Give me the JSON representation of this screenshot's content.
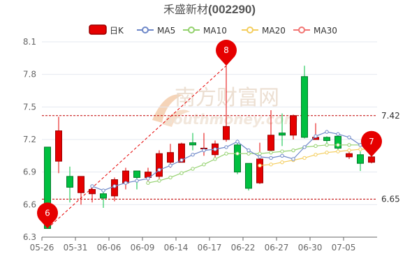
{
  "chart_data": {
    "type": "candlestick",
    "title": {
      "name": "禾盛新材",
      "code": "(002290)"
    },
    "legend": [
      {
        "key": "dayk",
        "label": "日K",
        "color": "#e60000"
      },
      {
        "key": "ma5",
        "label": "MA5",
        "color": "#6d87c8"
      },
      {
        "key": "ma10",
        "label": "MA10",
        "color": "#93d16d"
      },
      {
        "key": "ma20",
        "label": "MA20",
        "color": "#f4cd5c"
      },
      {
        "key": "ma30",
        "label": "MA30",
        "color": "#f27573"
      }
    ],
    "y_axis": {
      "min": 6.3,
      "max": 8.1,
      "ticks": [
        "6.3",
        "6.6",
        "6.9",
        "7.2",
        "7.5",
        "7.8",
        "8.1"
      ]
    },
    "x_tick_labels": [
      "05-26",
      "05-31",
      "06-06",
      "06-09",
      "06-14",
      "06-17",
      "06-22",
      "06-27",
      "06-30",
      "07-05"
    ],
    "x_tick_index": [
      0,
      3,
      6,
      9,
      12,
      15,
      18,
      21,
      24,
      27
    ],
    "candles": [
      {
        "open": 7.13,
        "close": 6.38,
        "high": 7.13,
        "low": 6.38
      },
      {
        "open": 7.0,
        "close": 7.28,
        "high": 7.41,
        "low": 6.89
      },
      {
        "open": 6.86,
        "close": 6.76,
        "high": 6.95,
        "low": 6.62
      },
      {
        "open": 6.71,
        "close": 6.86,
        "high": 6.86,
        "low": 6.6
      },
      {
        "open": 6.7,
        "close": 6.74,
        "high": 6.77,
        "low": 6.62
      },
      {
        "open": 6.7,
        "close": 6.66,
        "high": 6.72,
        "low": 6.57
      },
      {
        "open": 6.68,
        "close": 6.83,
        "high": 6.85,
        "low": 6.63
      },
      {
        "open": 6.8,
        "close": 6.91,
        "high": 6.94,
        "low": 6.74
      },
      {
        "open": 6.91,
        "close": 6.85,
        "high": 6.91,
        "low": 6.74
      },
      {
        "open": 6.85,
        "close": 6.9,
        "high": 6.94,
        "low": 6.8
      },
      {
        "open": 6.86,
        "close": 7.07,
        "high": 7.1,
        "low": 6.81
      },
      {
        "open": 6.99,
        "close": 7.08,
        "high": 7.16,
        "low": 6.94
      },
      {
        "open": 6.99,
        "close": 7.16,
        "high": 7.17,
        "low": 6.99
      },
      {
        "open": 7.17,
        "close": 7.15,
        "high": 7.26,
        "low": 7.1
      },
      {
        "open": 7.12,
        "close": 7.12,
        "high": 7.26,
        "low": 7.05
      },
      {
        "open": 7.06,
        "close": 7.16,
        "high": 7.19,
        "low": 7.02
      },
      {
        "open": 7.2,
        "close": 7.32,
        "high": 7.88,
        "low": 7.18
      },
      {
        "open": 7.15,
        "close": 6.9,
        "high": 7.17,
        "low": 6.88
      },
      {
        "open": 6.98,
        "close": 6.75,
        "high": 6.98,
        "low": 6.73
      },
      {
        "open": 6.8,
        "close": 7.02,
        "high": 7.17,
        "low": 6.79
      },
      {
        "open": 7.1,
        "close": 7.24,
        "high": 7.47,
        "low": 7.1
      },
      {
        "open": 7.26,
        "close": 7.24,
        "high": 7.44,
        "low": 7.14
      },
      {
        "open": 7.24,
        "close": 7.42,
        "high": 7.43,
        "low": 7.2
      },
      {
        "open": 7.78,
        "close": 7.22,
        "high": 7.88,
        "low": 7.21
      },
      {
        "open": 7.2,
        "close": 7.22,
        "high": 7.35,
        "low": 7.2
      },
      {
        "open": 7.22,
        "close": 7.19,
        "high": 7.23,
        "low": 7.16
      },
      {
        "open": 7.23,
        "close": 7.12,
        "high": 7.24,
        "low": 7.1
      },
      {
        "open": 7.04,
        "close": 7.07,
        "high": 7.1,
        "low": 7.02
      },
      {
        "open": 7.06,
        "close": 6.98,
        "high": 7.09,
        "low": 6.91
      },
      {
        "open": 6.99,
        "close": 7.04,
        "high": 7.05,
        "low": 6.98
      }
    ],
    "ma5": [
      null,
      null,
      null,
      null,
      6.77,
      6.73,
      6.77,
      6.8,
      6.82,
      6.84,
      6.92,
      6.96,
      7.01,
      7.06,
      7.1,
      7.11,
      7.13,
      7.18,
      7.1,
      7.04,
      7.03,
      7.05,
      7.02,
      7.13,
      7.23,
      7.27,
      7.25,
      7.22,
      7.15,
      7.08
    ],
    "ma10": [
      null,
      null,
      null,
      null,
      null,
      null,
      null,
      null,
      null,
      6.8,
      6.82,
      6.85,
      6.89,
      6.93,
      6.97,
      7.02,
      7.07,
      7.07,
      7.07,
      7.07,
      7.08,
      7.09,
      7.1,
      7.13,
      7.14,
      7.15,
      7.15,
      7.15,
      7.15,
      7.17
    ],
    "ma20": [
      null,
      null,
      null,
      null,
      null,
      null,
      null,
      null,
      null,
      null,
      null,
      null,
      null,
      null,
      null,
      null,
      null,
      null,
      null,
      6.96,
      6.97,
      6.99,
      7.01,
      7.03,
      7.06,
      7.08,
      7.09,
      7.1,
      7.11,
      7.11
    ],
    "ma30": [],
    "ref_lines": [
      {
        "value": 7.42,
        "label": "7.42"
      },
      {
        "value": 6.65,
        "label": "6.65"
      }
    ],
    "pins": [
      {
        "label": "8",
        "index": 16,
        "value": 7.88
      },
      {
        "label": "6",
        "index": 0,
        "value": 6.38
      },
      {
        "label": "7",
        "index": 29,
        "value": 7.04
      }
    ],
    "trend_line": {
      "from_index": 0,
      "from_value": 6.38,
      "to_index": 16,
      "to_value": 7.88
    },
    "watermark": {
      "cn": "南方财富网",
      "en": "southmoney.com"
    },
    "grid": "horizontal"
  }
}
